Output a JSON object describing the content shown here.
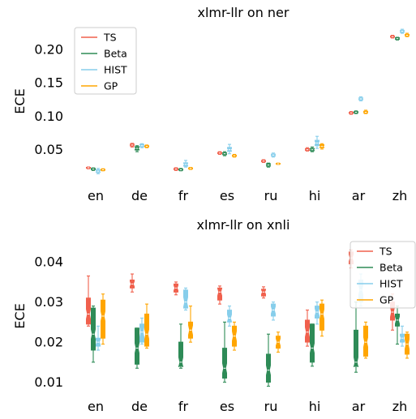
{
  "chart_data": [
    {
      "type": "box",
      "title": "xlmr-llr on ner",
      "xlabel": "",
      "ylabel": "ECE",
      "ylim": [
        0.0,
        0.235
      ],
      "yticks": [
        0.05,
        0.1,
        0.15,
        0.2
      ],
      "ytick_labels": [
        "0.05",
        "0.10",
        "0.15",
        "0.20"
      ],
      "grid": false,
      "legend": "top-left",
      "categories": [
        "en",
        "de",
        "fr",
        "es",
        "ru",
        "hi",
        "ar",
        "zh"
      ],
      "series": [
        {
          "name": "TS",
          "color": "#f0604d",
          "boxes": [
            {
              "median": 0.023,
              "q1": 0.0222,
              "q3": 0.0236,
              "whislo": 0.0215,
              "whishi": 0.0242
            },
            {
              "median": 0.057,
              "q1": 0.0555,
              "q3": 0.0585,
              "whislo": 0.054,
              "whishi": 0.0595
            },
            {
              "median": 0.021,
              "q1": 0.02,
              "q3": 0.0222,
              "whislo": 0.019,
              "whishi": 0.023
            },
            {
              "median": 0.045,
              "q1": 0.044,
              "q3": 0.046,
              "whislo": 0.043,
              "whishi": 0.047
            },
            {
              "median": 0.033,
              "q1": 0.032,
              "q3": 0.034,
              "whislo": 0.031,
              "whishi": 0.035
            },
            {
              "median": 0.05,
              "q1": 0.049,
              "q3": 0.0515,
              "whislo": 0.048,
              "whishi": 0.053
            },
            {
              "median": 0.105,
              "q1": 0.104,
              "q3": 0.106,
              "whislo": 0.103,
              "whishi": 0.107
            },
            {
              "median": 0.219,
              "q1": 0.218,
              "q3": 0.22,
              "whislo": 0.217,
              "whishi": 0.221
            }
          ]
        },
        {
          "name": "Beta",
          "color": "#2e8b57",
          "boxes": [
            {
              "median": 0.021,
              "q1": 0.02,
              "q3": 0.0222,
              "whislo": 0.019,
              "whishi": 0.0228
            },
            {
              "median": 0.052,
              "q1": 0.0495,
              "q3": 0.0545,
              "whislo": 0.047,
              "whishi": 0.056
            },
            {
              "median": 0.02,
              "q1": 0.0192,
              "q3": 0.0212,
              "whislo": 0.0185,
              "whishi": 0.022
            },
            {
              "median": 0.044,
              "q1": 0.0425,
              "q3": 0.0455,
              "whislo": 0.041,
              "whishi": 0.047
            },
            {
              "median": 0.027,
              "q1": 0.0255,
              "q3": 0.029,
              "whislo": 0.024,
              "whishi": 0.03
            },
            {
              "median": 0.05,
              "q1": 0.0485,
              "q3": 0.052,
              "whislo": 0.047,
              "whishi": 0.054
            },
            {
              "median": 0.106,
              "q1": 0.105,
              "q3": 0.107,
              "whislo": 0.104,
              "whishi": 0.108
            },
            {
              "median": 0.216,
              "q1": 0.215,
              "q3": 0.2175,
              "whislo": 0.214,
              "whishi": 0.218
            }
          ]
        },
        {
          "name": "HIST",
          "color": "#87ceeb",
          "boxes": [
            {
              "median": 0.018,
              "q1": 0.016,
              "q3": 0.02,
              "whislo": 0.014,
              "whishi": 0.022
            },
            {
              "median": 0.056,
              "q1": 0.0545,
              "q3": 0.058,
              "whislo": 0.053,
              "whishi": 0.059
            },
            {
              "median": 0.028,
              "q1": 0.0255,
              "q3": 0.0305,
              "whislo": 0.024,
              "whishi": 0.034
            },
            {
              "median": 0.05,
              "q1": 0.0475,
              "q3": 0.0535,
              "whislo": 0.044,
              "whishi": 0.058
            },
            {
              "median": 0.042,
              "q1": 0.0405,
              "q3": 0.0435,
              "whislo": 0.039,
              "whishi": 0.045
            },
            {
              "median": 0.06,
              "q1": 0.056,
              "q3": 0.064,
              "whislo": 0.052,
              "whishi": 0.07
            },
            {
              "median": 0.126,
              "q1": 0.1245,
              "q3": 0.1275,
              "whislo": 0.123,
              "whishi": 0.129
            },
            {
              "median": 0.227,
              "q1": 0.2255,
              "q3": 0.2285,
              "whislo": 0.224,
              "whishi": 0.23
            }
          ]
        },
        {
          "name": "GP",
          "color": "#ffa500",
          "boxes": [
            {
              "median": 0.02,
              "q1": 0.0192,
              "q3": 0.0208,
              "whislo": 0.0185,
              "whishi": 0.0215
            },
            {
              "median": 0.055,
              "q1": 0.054,
              "q3": 0.056,
              "whislo": 0.053,
              "whishi": 0.057
            },
            {
              "median": 0.022,
              "q1": 0.0212,
              "q3": 0.0228,
              "whislo": 0.0205,
              "whishi": 0.0235
            },
            {
              "median": 0.041,
              "q1": 0.04,
              "q3": 0.042,
              "whislo": 0.039,
              "whishi": 0.043
            },
            {
              "median": 0.029,
              "q1": 0.0285,
              "q3": 0.0295,
              "whislo": 0.028,
              "whishi": 0.03
            },
            {
              "median": 0.055,
              "q1": 0.053,
              "q3": 0.0575,
              "whislo": 0.051,
              "whishi": 0.059
            },
            {
              "median": 0.106,
              "q1": 0.105,
              "q3": 0.1075,
              "whislo": 0.104,
              "whishi": 0.109
            },
            {
              "median": 0.221,
              "q1": 0.22,
              "q3": 0.2225,
              "whislo": 0.219,
              "whishi": 0.224
            }
          ]
        }
      ]
    },
    {
      "type": "box",
      "title": "xlmr-llr on xnli",
      "xlabel": "",
      "ylabel": "ECE",
      "ylim": [
        0.0075,
        0.0455
      ],
      "yticks": [
        0.01,
        0.02,
        0.03,
        0.04
      ],
      "ytick_labels": [
        "0.01",
        "0.02",
        "0.03",
        "0.04"
      ],
      "grid": false,
      "legend": "top-right",
      "categories": [
        "en",
        "de",
        "fr",
        "es",
        "ru",
        "hi",
        "ar",
        "zh"
      ],
      "series": [
        {
          "name": "TS",
          "color": "#f0604d",
          "boxes": [
            {
              "median": 0.027,
              "q1": 0.0245,
              "q3": 0.031,
              "whislo": 0.024,
              "whishi": 0.0365
            },
            {
              "median": 0.0345,
              "q1": 0.0335,
              "q3": 0.0355,
              "whislo": 0.0325,
              "whishi": 0.037
            },
            {
              "median": 0.0335,
              "q1": 0.0325,
              "q3": 0.0345,
              "whislo": 0.0318,
              "whishi": 0.035
            },
            {
              "median": 0.0325,
              "q1": 0.0305,
              "q3": 0.0335,
              "whislo": 0.0295,
              "whishi": 0.034
            },
            {
              "median": 0.0325,
              "q1": 0.0315,
              "q3": 0.0332,
              "whislo": 0.031,
              "whishi": 0.0338
            },
            {
              "median": 0.0225,
              "q1": 0.02,
              "q3": 0.0255,
              "whislo": 0.019,
              "whishi": 0.028
            },
            {
              "median": 0.041,
              "q1": 0.0395,
              "q3": 0.0425,
              "whislo": 0.0385,
              "whishi": 0.043
            },
            {
              "median": 0.0275,
              "q1": 0.0255,
              "q3": 0.03,
              "whislo": 0.023,
              "whishi": 0.032
            }
          ]
        },
        {
          "name": "Beta",
          "color": "#2e8b57",
          "boxes": [
            {
              "median": 0.022,
              "q1": 0.018,
              "q3": 0.0285,
              "whislo": 0.015,
              "whishi": 0.029
            },
            {
              "median": 0.0185,
              "q1": 0.0145,
              "q3": 0.0235,
              "whislo": 0.0135,
              "whishi": 0.0235
            },
            {
              "median": 0.015,
              "q1": 0.014,
              "q3": 0.02,
              "whislo": 0.0135,
              "whishi": 0.0245
            },
            {
              "median": 0.0135,
              "q1": 0.011,
              "q3": 0.0185,
              "whislo": 0.01,
              "whishi": 0.025
            },
            {
              "median": 0.013,
              "q1": 0.01,
              "q3": 0.017,
              "whislo": 0.009,
              "whishi": 0.022
            },
            {
              "median": 0.0185,
              "q1": 0.015,
              "q3": 0.0245,
              "whislo": 0.014,
              "whishi": 0.0245
            },
            {
              "median": 0.015,
              "q1": 0.014,
              "q3": 0.023,
              "whislo": 0.0125,
              "whishi": 0.03
            },
            {
              "median": 0.0255,
              "q1": 0.024,
              "q3": 0.027,
              "whislo": 0.0195,
              "whishi": 0.029
            }
          ]
        },
        {
          "name": "HIST",
          "color": "#87ceeb",
          "boxes": [
            {
              "median": 0.02,
              "q1": 0.019,
              "q3": 0.021,
              "whislo": 0.018,
              "whishi": 0.024
            },
            {
              "median": 0.0225,
              "q1": 0.02,
              "q3": 0.0245,
              "whislo": 0.0195,
              "whishi": 0.026
            },
            {
              "median": 0.03,
              "q1": 0.0285,
              "q3": 0.033,
              "whislo": 0.028,
              "whishi": 0.0335
            },
            {
              "median": 0.026,
              "q1": 0.025,
              "q3": 0.028,
              "whislo": 0.024,
              "whishi": 0.029
            },
            {
              "median": 0.028,
              "q1": 0.0265,
              "q3": 0.0295,
              "whislo": 0.0255,
              "whishi": 0.03
            },
            {
              "median": 0.0275,
              "q1": 0.026,
              "q3": 0.029,
              "whislo": 0.0245,
              "whishi": 0.03
            },
            {
              "median": 0.033,
              "q1": 0.03,
              "q3": 0.0355,
              "whislo": 0.029,
              "whishi": 0.037
            },
            {
              "median": 0.021,
              "q1": 0.02,
              "q3": 0.022,
              "whislo": 0.019,
              "whishi": 0.024
            }
          ]
        },
        {
          "name": "GP",
          "color": "#ffa500",
          "boxes": [
            {
              "median": 0.0265,
              "q1": 0.021,
              "q3": 0.0305,
              "whislo": 0.0195,
              "whishi": 0.032
            },
            {
              "median": 0.022,
              "q1": 0.019,
              "q3": 0.027,
              "whislo": 0.0185,
              "whishi": 0.0295
            },
            {
              "median": 0.023,
              "q1": 0.021,
              "q3": 0.025,
              "whislo": 0.02,
              "whishi": 0.029
            },
            {
              "median": 0.0215,
              "q1": 0.019,
              "q3": 0.024,
              "whislo": 0.018,
              "whishi": 0.025
            },
            {
              "median": 0.02,
              "q1": 0.0185,
              "q3": 0.0215,
              "whislo": 0.0175,
              "whishi": 0.0225
            },
            {
              "median": 0.027,
              "q1": 0.023,
              "q3": 0.0295,
              "whislo": 0.0215,
              "whishi": 0.0305
            },
            {
              "median": 0.02,
              "q1": 0.0165,
              "q3": 0.024,
              "whislo": 0.016,
              "whishi": 0.025
            },
            {
              "median": 0.0195,
              "q1": 0.017,
              "q3": 0.022,
              "whislo": 0.016,
              "whishi": 0.0225
            }
          ]
        }
      ]
    }
  ]
}
